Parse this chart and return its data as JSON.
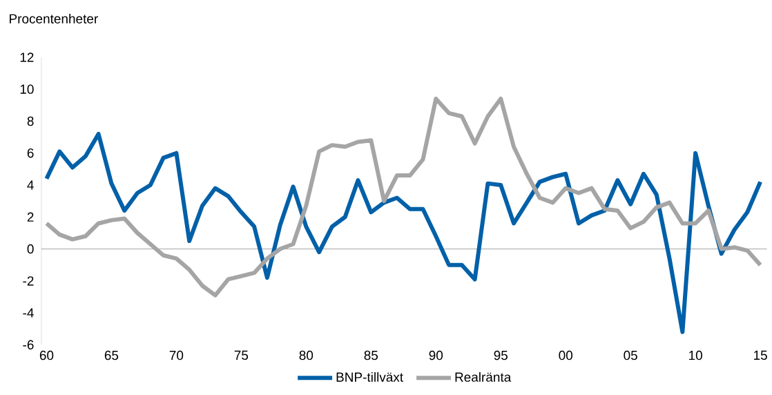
{
  "chart_data": {
    "type": "line",
    "ylabel": "Procentenheter",
    "x": [
      1960,
      1961,
      1962,
      1963,
      1964,
      1965,
      1966,
      1967,
      1968,
      1969,
      1970,
      1971,
      1972,
      1973,
      1974,
      1975,
      1976,
      1977,
      1978,
      1979,
      1980,
      1981,
      1982,
      1983,
      1984,
      1985,
      1986,
      1987,
      1988,
      1989,
      1990,
      1991,
      1992,
      1993,
      1994,
      1995,
      1996,
      1997,
      1998,
      1999,
      2000,
      2001,
      2002,
      2003,
      2004,
      2005,
      2006,
      2007,
      2008,
      2009,
      2010,
      2011,
      2012,
      2013,
      2014,
      2015
    ],
    "series": [
      {
        "name": "BNP-tillväxt",
        "color": "#0060a8",
        "values": [
          4.4,
          6.1,
          5.1,
          5.8,
          7.2,
          4.1,
          2.4,
          3.5,
          4.0,
          5.7,
          6.0,
          0.5,
          2.7,
          3.8,
          3.3,
          2.3,
          1.4,
          -1.8,
          1.5,
          3.9,
          1.4,
          -0.2,
          1.4,
          2.0,
          4.3,
          2.3,
          2.9,
          3.2,
          2.5,
          2.5,
          0.8,
          -1.0,
          -1.0,
          -1.9,
          4.1,
          4.0,
          1.6,
          2.9,
          4.2,
          4.5,
          4.7,
          1.6,
          2.1,
          2.4,
          4.3,
          2.8,
          4.7,
          3.4,
          -0.6,
          -5.2,
          6.0,
          2.7,
          -0.3,
          1.2,
          2.3,
          4.2
        ]
      },
      {
        "name": "Realränta",
        "color": "#a5a5a5",
        "values": [
          1.6,
          0.9,
          0.6,
          0.8,
          1.6,
          1.8,
          1.9,
          1.0,
          0.3,
          -0.4,
          -0.6,
          -1.3,
          -2.3,
          -2.9,
          -1.9,
          -1.7,
          -1.5,
          -0.6,
          0.0,
          0.3,
          2.7,
          6.1,
          6.5,
          6.4,
          6.7,
          6.8,
          3.0,
          4.6,
          4.6,
          5.6,
          9.4,
          8.5,
          8.3,
          6.6,
          8.3,
          9.4,
          6.4,
          4.7,
          3.2,
          2.9,
          3.8,
          3.5,
          3.8,
          2.5,
          2.4,
          1.3,
          1.7,
          2.6,
          2.9,
          1.6,
          1.6,
          2.4,
          0.0,
          0.1,
          -0.1,
          -1.0
        ]
      }
    ],
    "xlim": [
      1959.6,
      2015.5
    ],
    "ylim": [
      -6,
      12
    ],
    "xticks": [
      {
        "value": 1960,
        "label": "60"
      },
      {
        "value": 1965,
        "label": "65"
      },
      {
        "value": 1970,
        "label": "70"
      },
      {
        "value": 1975,
        "label": "75"
      },
      {
        "value": 1980,
        "label": "80"
      },
      {
        "value": 1985,
        "label": "85"
      },
      {
        "value": 1990,
        "label": "90"
      },
      {
        "value": 1995,
        "label": "95"
      },
      {
        "value": 2000,
        "label": "00"
      },
      {
        "value": 2005,
        "label": "05"
      },
      {
        "value": 2010,
        "label": "10"
      },
      {
        "value": 2015,
        "label": "15"
      }
    ],
    "yticks": [
      -6,
      -4,
      -2,
      0,
      2,
      4,
      6,
      8,
      10,
      12
    ],
    "legend": "bottom",
    "marker": "none",
    "line_style": "solid"
  }
}
